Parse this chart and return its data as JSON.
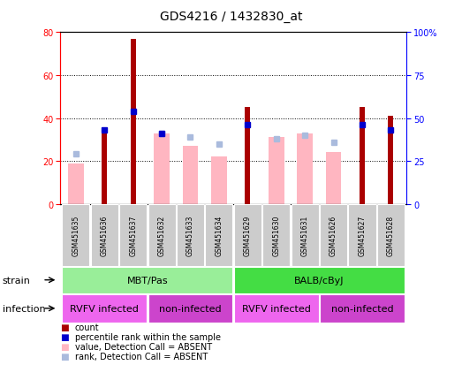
{
  "title": "GDS4216 / 1432830_at",
  "samples": [
    "GSM451635",
    "GSM451636",
    "GSM451637",
    "GSM451632",
    "GSM451633",
    "GSM451634",
    "GSM451629",
    "GSM451630",
    "GSM451631",
    "GSM451626",
    "GSM451627",
    "GSM451628"
  ],
  "count_values": [
    0,
    35,
    77,
    0,
    0,
    0,
    45,
    0,
    0,
    0,
    45,
    41
  ],
  "percentile_values": [
    0,
    43,
    54,
    41,
    0,
    0,
    46,
    0,
    0,
    0,
    46,
    43
  ],
  "value_absent": [
    19,
    0,
    0,
    33,
    27,
    22,
    0,
    31,
    33,
    24,
    0,
    0
  ],
  "rank_absent": [
    29,
    0,
    0,
    41,
    39,
    35,
    0,
    38,
    40,
    36,
    0,
    0
  ],
  "strain_groups": [
    {
      "label": "MBT/Pas",
      "start": 0,
      "end": 6,
      "color": "#99EE99"
    },
    {
      "label": "BALB/cByJ",
      "start": 6,
      "end": 12,
      "color": "#44DD44"
    }
  ],
  "infection_groups": [
    {
      "label": "RVFV infected",
      "start": 0,
      "end": 3,
      "color": "#EE66EE"
    },
    {
      "label": "non-infected",
      "start": 3,
      "end": 6,
      "color": "#CC44CC"
    },
    {
      "label": "RVFV infected",
      "start": 6,
      "end": 9,
      "color": "#EE66EE"
    },
    {
      "label": "non-infected",
      "start": 9,
      "end": 12,
      "color": "#CC44CC"
    }
  ],
  "ylim_left": [
    0,
    80
  ],
  "ylim_right": [
    0,
    100
  ],
  "yticks_left": [
    0,
    20,
    40,
    60,
    80
  ],
  "yticks_right": [
    0,
    25,
    50,
    75,
    100
  ],
  "bar_color_count": "#AA0000",
  "bar_color_percentile": "#0000CC",
  "bar_color_value_absent": "#FFB6C1",
  "bar_color_rank_absent": "#AABBDD",
  "background_color": "#FFFFFF",
  "title_fontsize": 10,
  "tick_fontsize": 7,
  "label_fontsize": 8,
  "sample_fontsize": 5.5,
  "legend_fontsize": 7
}
